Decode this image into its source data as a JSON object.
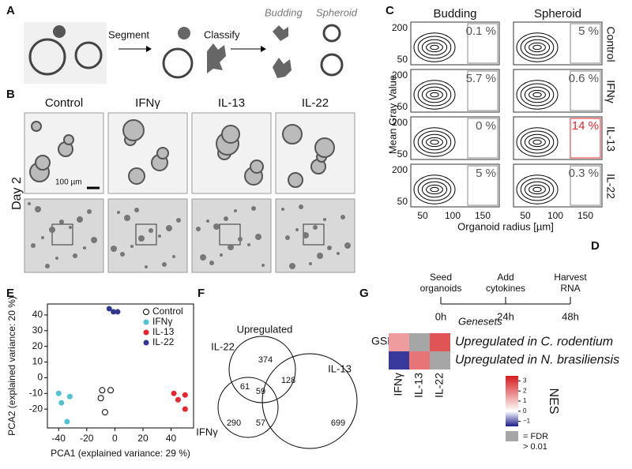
{
  "panel_a": {
    "label": "A",
    "step1": "Segment",
    "step2": "Classify",
    "class1": "Budding",
    "class2": "Spheroid"
  },
  "panel_b": {
    "label": "B",
    "columns": [
      "Control",
      "IFNγ",
      "IL-13",
      "IL-22"
    ],
    "row_label": "Day 2",
    "scale_bar": "100 µm"
  },
  "panel_c": {
    "label": "C",
    "columns": [
      "Budding",
      "Spheroid"
    ],
    "rows": [
      "Control",
      "IFNγ",
      "IL-13",
      "IL-22"
    ],
    "percentages": [
      [
        "0.1 %",
        "5 %"
      ],
      [
        "5.7 %",
        "0.6 %"
      ],
      [
        "0 %",
        "14 %"
      ],
      [
        "5 %",
        "0.3 %"
      ]
    ],
    "yticks": [
      "200",
      "50"
    ],
    "xticks": [
      "50",
      "100",
      "150"
    ],
    "ylabel": "Mean Gray Value",
    "xlabel": "Organoid radius [µm]",
    "highlight_color": "#e8262b"
  },
  "panel_d": {
    "label": "D",
    "steps": [
      [
        "Seed",
        "organoids"
      ],
      [
        "Add",
        "cytokines"
      ],
      [
        "Harvest",
        "RNA"
      ]
    ],
    "times": [
      "0h",
      "24h",
      "48h"
    ]
  },
  "panel_f": {
    "label": "F",
    "title": "Upregulated",
    "sets": [
      "IL-22",
      "IL-13",
      "IFNγ"
    ],
    "counts": {
      "il22_only": "374",
      "il13_only": "699",
      "ifng_only": "290",
      "il22_il13": "128",
      "il22_ifng": "61",
      "il13_ifng": "57",
      "all": "59"
    }
  },
  "chart_data": [
    {
      "type": "scatter",
      "label": "E",
      "xlabel": "PCA1 (explained variance: 29 %)",
      "ylabel": "PCA2 (explained variance: 20 %)",
      "xlim": [
        -48,
        56
      ],
      "ylim": [
        -32,
        47
      ],
      "xticks": [
        -40,
        -20,
        0,
        20,
        40
      ],
      "yticks": [
        -20,
        -10,
        0,
        10,
        20,
        30,
        40
      ],
      "legend": "upper-right",
      "series": [
        {
          "name": "Control",
          "color": "#000000",
          "marker": "open",
          "x": [
            -9,
            -3,
            -10,
            -7
          ],
          "y": [
            -8,
            -8,
            -13,
            -22
          ]
        },
        {
          "name": "IFNγ",
          "color": "#4fc3d0",
          "marker": "filled",
          "x": [
            -40,
            -32,
            -38,
            -34
          ],
          "y": [
            -10,
            -12,
            -16,
            -28
          ]
        },
        {
          "name": "IL-13",
          "color": "#e8262b",
          "marker": "filled",
          "x": [
            42,
            50,
            45,
            50
          ],
          "y": [
            -10,
            -11,
            -14,
            -20
          ]
        },
        {
          "name": "IL-22",
          "color": "#2f3a8f",
          "marker": "filled",
          "x": [
            -4,
            -1,
            2
          ],
          "y": [
            44,
            42,
            42
          ]
        }
      ]
    },
    {
      "type": "heatmap",
      "label": "G",
      "method": "GSEA:",
      "row_title": "Genesets",
      "rows": [
        "Upregulated in C. rodentium",
        "Upregulated in N. brasiliensis"
      ],
      "columns": [
        "IFNγ",
        "IL-13",
        "IL-22"
      ],
      "values": [
        [
          1.5,
          null,
          2.6
        ],
        [
          -1.3,
          2.1,
          null
        ]
      ],
      "clim": [
        -1.5,
        3.5
      ],
      "cticks": [
        3,
        2,
        1,
        0,
        {
          "value": -1,
          "label": "−1"
        }
      ],
      "colorbar_label": "NES",
      "null_color": "#a6a6a6",
      "null_label": [
        "= FDR",
        "> 0.01"
      ],
      "pos_color": "#d7191c",
      "neg_color": "#1a1a8c"
    }
  ]
}
